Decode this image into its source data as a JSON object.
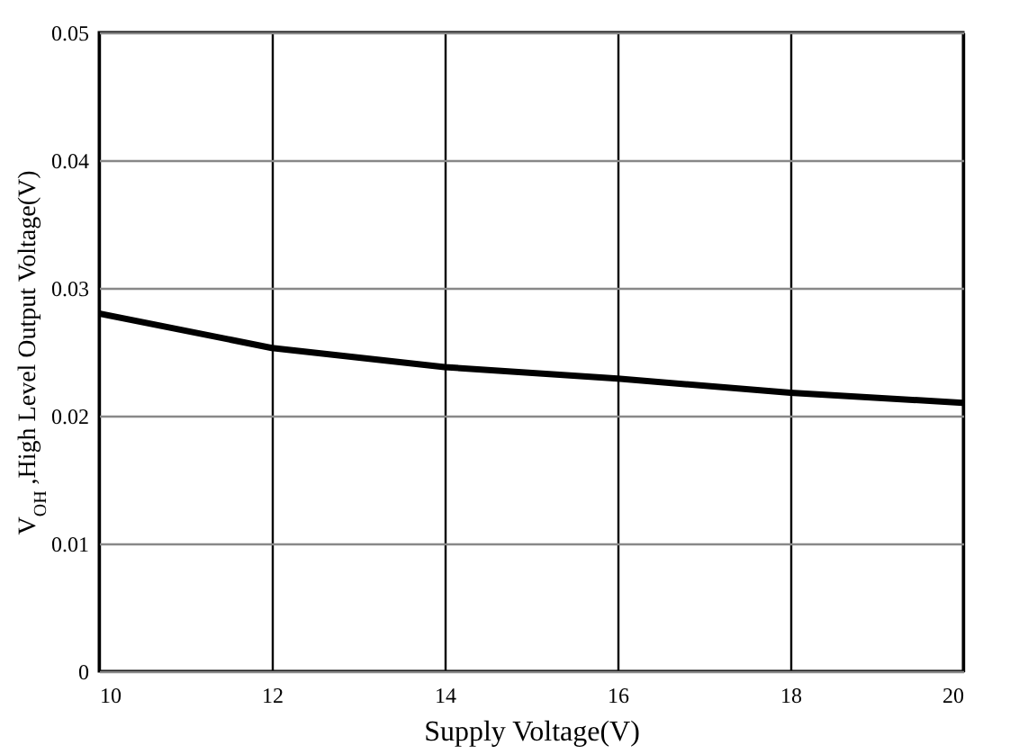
{
  "chart_data": {
    "type": "line",
    "xlabel": "Supply Voltage(V)",
    "ylabel": "V$_{OH}$ ,High Level Output Voltage(V)",
    "x": [
      10,
      12,
      14,
      16,
      18,
      20
    ],
    "series": [
      {
        "color": "#000000",
        "values": [
          0.028,
          0.0253,
          0.0238,
          0.0229,
          0.0218,
          0.021
        ]
      }
    ],
    "xlim": [
      10,
      20
    ],
    "xticks": [
      10,
      12,
      14,
      16,
      18,
      20
    ],
    "ylim": [
      0,
      0.05
    ],
    "yticks": [
      0,
      0.01,
      0.02,
      0.03,
      0.04,
      0.05
    ],
    "grid": true,
    "legend": false,
    "marker": "none",
    "line_style": "solid"
  }
}
